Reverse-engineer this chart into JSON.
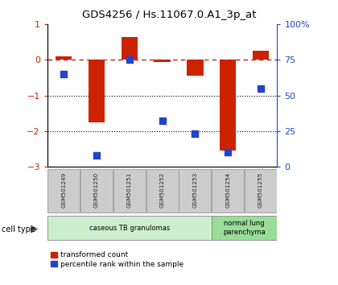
{
  "title": "GDS4256 / Hs.11067.0.A1_3p_at",
  "samples": [
    "GSM501249",
    "GSM501250",
    "GSM501251",
    "GSM501252",
    "GSM501253",
    "GSM501254",
    "GSM501255"
  ],
  "red_values": [
    0.1,
    -1.75,
    0.65,
    -0.05,
    -0.45,
    -2.55,
    0.25
  ],
  "blue_values_pct": [
    65,
    8,
    75,
    32,
    23,
    10,
    55
  ],
  "ylim_left": [
    -3,
    1
  ],
  "ylim_right": [
    0,
    100
  ],
  "left_yticks": [
    -3,
    -2,
    -1,
    0,
    1
  ],
  "right_yticks": [
    0,
    25,
    50,
    75,
    100
  ],
  "right_yticklabels": [
    "0",
    "25",
    "50",
    "75",
    "100%"
  ],
  "hline_y": 0,
  "dotted_lines": [
    -1,
    -2
  ],
  "red_color": "#cc2200",
  "blue_color": "#2244cc",
  "bar_width": 0.5,
  "cell_type_groups": [
    {
      "label": "caseous TB granulomas",
      "samples": [
        0,
        1,
        2,
        3,
        4
      ],
      "color": "#cceecc"
    },
    {
      "label": "normal lung\nparenchyma",
      "samples": [
        5,
        6
      ],
      "color": "#99dd99"
    }
  ],
  "legend_red": "transformed count",
  "legend_blue": "percentile rank within the sample",
  "cell_type_label": "cell type",
  "background_color": "#ffffff",
  "tick_box_color": "#cccccc",
  "tick_box_border": "#999999"
}
